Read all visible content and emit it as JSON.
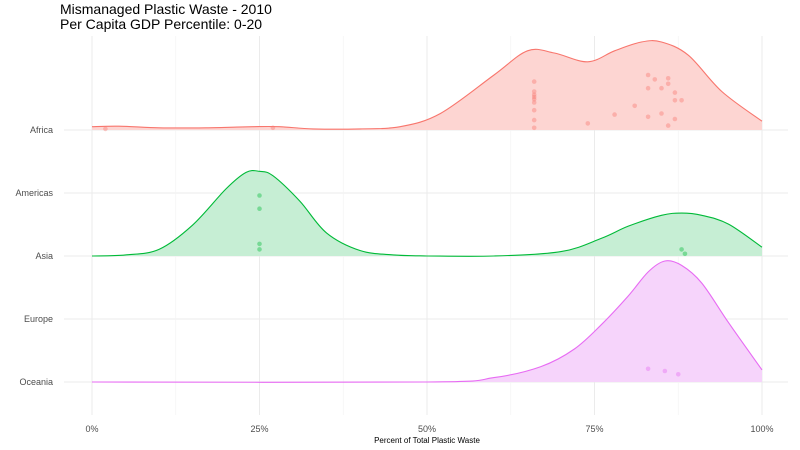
{
  "chart_data": {
    "type": "ridgeline",
    "title": "Mismanaged Plastic Waste - 2010",
    "subtitle": "Per Capita GDP Percentile: 0-20",
    "xlabel": "Percent of Total Plastic Waste",
    "ylabel": "",
    "xlim": [
      -0.04,
      1.04
    ],
    "x_ticks": [
      {
        "value": 0,
        "label": "0%"
      },
      {
        "value": 0.25,
        "label": "25%"
      },
      {
        "value": 0.5,
        "label": "50%"
      },
      {
        "value": 0.75,
        "label": "75%"
      },
      {
        "value": 1,
        "label": "100%"
      }
    ],
    "categories": [
      "Africa",
      "Americas",
      "Asia",
      "Europe",
      "Oceania"
    ],
    "grid": true,
    "legend": "none",
    "series": [
      {
        "name": "Africa",
        "baseline_category": "Africa",
        "color": "#F8766D",
        "fill": "#FDD5D2",
        "density": [
          [
            0,
            0.03
          ],
          [
            0.04,
            0.035
          ],
          [
            0.1,
            0.02
          ],
          [
            0.17,
            0.02
          ],
          [
            0.24,
            0.03
          ],
          [
            0.28,
            0.03
          ],
          [
            0.33,
            0.01
          ],
          [
            0.4,
            0.01
          ],
          [
            0.46,
            0.03
          ],
          [
            0.52,
            0.15
          ],
          [
            0.6,
            0.5
          ],
          [
            0.65,
            0.72
          ],
          [
            0.69,
            0.7
          ],
          [
            0.74,
            0.62
          ],
          [
            0.78,
            0.72
          ],
          [
            0.82,
            0.8
          ],
          [
            0.85,
            0.8
          ],
          [
            0.89,
            0.68
          ],
          [
            0.94,
            0.35
          ],
          [
            1.0,
            0.08
          ]
        ],
        "points": [
          [
            0.02,
            0.01
          ],
          [
            0.27,
            0.02
          ],
          [
            0.66,
            0.02
          ],
          [
            0.66,
            0.09
          ],
          [
            0.66,
            0.18
          ],
          [
            0.66,
            0.25
          ],
          [
            0.66,
            0.28
          ],
          [
            0.66,
            0.3
          ],
          [
            0.66,
            0.32
          ],
          [
            0.66,
            0.35
          ],
          [
            0.66,
            0.44
          ],
          [
            0.74,
            0.06
          ],
          [
            0.78,
            0.14
          ],
          [
            0.81,
            0.22
          ],
          [
            0.83,
            0.12
          ],
          [
            0.83,
            0.38
          ],
          [
            0.83,
            0.5
          ],
          [
            0.84,
            0.46
          ],
          [
            0.85,
            0.38
          ],
          [
            0.85,
            0.15
          ],
          [
            0.86,
            0.04
          ],
          [
            0.86,
            0.42
          ],
          [
            0.86,
            0.47
          ],
          [
            0.87,
            0.34
          ],
          [
            0.87,
            0.1
          ],
          [
            0.87,
            0.27
          ],
          [
            0.88,
            0.27
          ]
        ]
      },
      {
        "name": "Americas",
        "baseline_category": "Asia",
        "color": "#00BA38",
        "fill": "#C6EED4",
        "density": [
          [
            0,
            0
          ],
          [
            0.05,
            0.01
          ],
          [
            0.1,
            0.06
          ],
          [
            0.15,
            0.28
          ],
          [
            0.2,
            0.61
          ],
          [
            0.23,
            0.76
          ],
          [
            0.25,
            0.77
          ],
          [
            0.27,
            0.73
          ],
          [
            0.31,
            0.5
          ],
          [
            0.35,
            0.21
          ],
          [
            0.4,
            0.05
          ],
          [
            0.45,
            0.01
          ],
          [
            0.5,
            0
          ]
        ],
        "points": [
          [
            0.25,
            0.55
          ],
          [
            0.25,
            0.43
          ],
          [
            0.25,
            0.11
          ],
          [
            0.25,
            0.06
          ]
        ]
      },
      {
        "name": "Asia",
        "baseline_category": "Asia",
        "color": "#00BA38",
        "fill": "#C6EED4",
        "density": [
          [
            0.5,
            0
          ],
          [
            0.6,
            0
          ],
          [
            0.7,
            0.04
          ],
          [
            0.76,
            0.16
          ],
          [
            0.8,
            0.27
          ],
          [
            0.85,
            0.37
          ],
          [
            0.88,
            0.39
          ],
          [
            0.91,
            0.37
          ],
          [
            0.95,
            0.29
          ],
          [
            1.0,
            0.08
          ]
        ],
        "points": [
          [
            0.88,
            0.06
          ],
          [
            0.885,
            0.02
          ]
        ]
      },
      {
        "name": "Oceania",
        "baseline_category": "Oceania",
        "color": "#E76BF3",
        "fill": "#F6D4FB",
        "density": [
          [
            0,
            0
          ],
          [
            0.5,
            0
          ],
          [
            0.6,
            0.04
          ],
          [
            0.67,
            0.14
          ],
          [
            0.72,
            0.3
          ],
          [
            0.76,
            0.52
          ],
          [
            0.8,
            0.78
          ],
          [
            0.83,
            1.0
          ],
          [
            0.855,
            1.1
          ],
          [
            0.88,
            1.06
          ],
          [
            0.91,
            0.9
          ],
          [
            0.95,
            0.54
          ],
          [
            1.0,
            0.11
          ]
        ],
        "points": [
          [
            0.83,
            0.12
          ],
          [
            0.855,
            0.1
          ],
          [
            0.875,
            0.07
          ]
        ]
      }
    ]
  }
}
